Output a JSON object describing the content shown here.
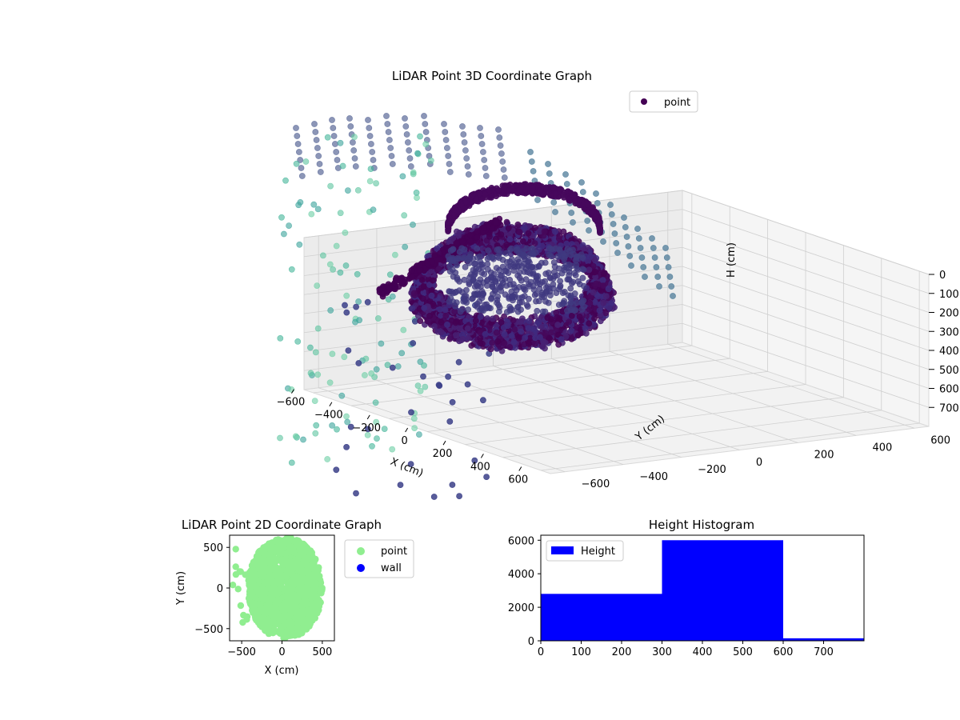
{
  "colors": {
    "axis": "#000000",
    "pane": "#f2f2f2",
    "pane_edge": "#d9d9d9",
    "grid": "#cfcfcf",
    "point_2d": "#90ee90",
    "wall_2d": "#0000ff",
    "hist_bar": "#0000ff",
    "legend_point_3d": "#440154"
  },
  "chart_data": [
    {
      "type": "scatter",
      "projection": "3d",
      "title": "LiDAR Point 3D Coordinate Graph",
      "xlabel": "X (cm)",
      "ylabel": "Y (cm)",
      "zlabel": "H (cm)",
      "xticks": [
        "−600",
        "−400",
        "−200",
        "0",
        "200",
        "400",
        "600"
      ],
      "yticks": [
        "−600",
        "−400",
        "−200",
        "0",
        "200",
        "400",
        "600"
      ],
      "zticks": [
        "0",
        "100",
        "200",
        "300",
        "400",
        "500",
        "600",
        "700"
      ],
      "xlim": [
        -650,
        650
      ],
      "ylim": [
        -650,
        650
      ],
      "zlim": [
        800,
        0
      ],
      "colormap": "viridis",
      "grid": true,
      "legend": {
        "position": "top-right",
        "entries": [
          "point"
        ]
      }
    },
    {
      "type": "scatter",
      "title": "LiDAR Point 2D Coordinate Graph",
      "xlabel": "X (cm)",
      "ylabel": "Y (cm)",
      "xticks": [
        "−500",
        "0",
        "500"
      ],
      "yticks": [
        "−500",
        "0",
        "500"
      ],
      "xlim": [
        -650,
        650
      ],
      "ylim": [
        -650,
        650
      ],
      "grid": false,
      "legend": {
        "position": "outside-right",
        "entries": [
          "point",
          "wall"
        ]
      },
      "series": [
        {
          "name": "point",
          "color": "#90ee90"
        },
        {
          "name": "wall",
          "color": "#0000ff"
        }
      ]
    },
    {
      "type": "bar",
      "title": "Height Histogram",
      "xticks": [
        "0",
        "100",
        "200",
        "300",
        "400",
        "500",
        "600",
        "700"
      ],
      "yticks": [
        "0",
        "2000",
        "4000",
        "6000"
      ],
      "xlim": [
        0,
        800
      ],
      "ylim": [
        0,
        6300
      ],
      "bins": [
        {
          "start": 0,
          "end": 300,
          "count": 2800
        },
        {
          "start": 300,
          "end": 600,
          "count": 6000
        },
        {
          "start": 600,
          "end": 800,
          "count": 150
        }
      ],
      "grid": false,
      "legend": {
        "position": "top-left",
        "entries": [
          "Height"
        ]
      }
    }
  ]
}
